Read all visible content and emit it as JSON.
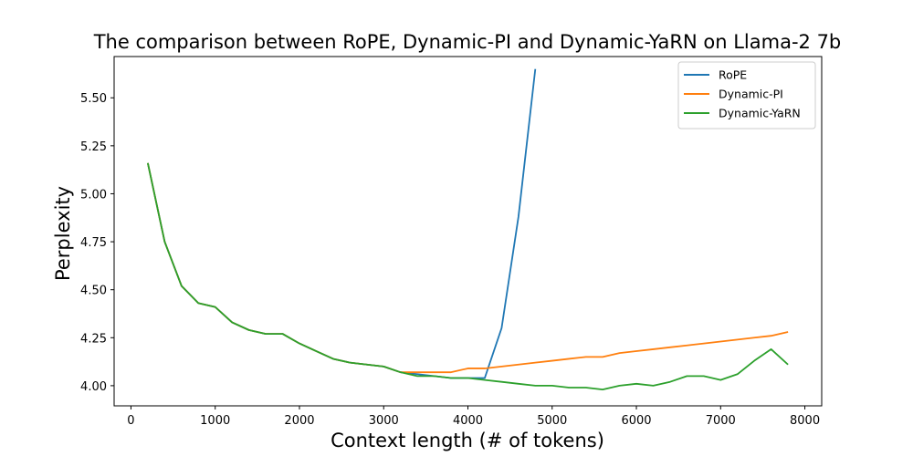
{
  "chart_data": {
    "type": "line",
    "title": "The comparison between RoPE, Dynamic-PI and Dynamic-YaRN on Llama-2 7b",
    "xlabel": "Context length (# of tokens)",
    "ylabel": "Perplexity",
    "xlim": [
      -200,
      8200
    ],
    "ylim": [
      3.895,
      5.715
    ],
    "xticks": [
      0,
      1000,
      2000,
      3000,
      4000,
      5000,
      6000,
      7000,
      8000
    ],
    "xtick_labels": [
      "0",
      "1000",
      "2000",
      "3000",
      "4000",
      "5000",
      "6000",
      "7000",
      "8000"
    ],
    "yticks": [
      4.0,
      4.25,
      4.5,
      4.75,
      5.0,
      5.25,
      5.5
    ],
    "ytick_labels": [
      "4.00",
      "4.25",
      "4.50",
      "4.75",
      "5.00",
      "5.25",
      "5.50"
    ],
    "grid": false,
    "legend_position": "top-right",
    "series": [
      {
        "name": "RoPE",
        "color": "#1f77b4",
        "x": [
          200,
          400,
          600,
          800,
          1000,
          1200,
          1400,
          1600,
          1800,
          2000,
          2200,
          2400,
          2600,
          2800,
          3000,
          3200,
          3400,
          3600,
          3800,
          4000,
          4200,
          4400,
          4600,
          4800
        ],
        "y": [
          5.16,
          4.75,
          4.52,
          4.43,
          4.41,
          4.33,
          4.29,
          4.27,
          4.27,
          4.22,
          4.18,
          4.14,
          4.12,
          4.11,
          4.1,
          4.07,
          4.06,
          4.05,
          4.04,
          4.04,
          4.04,
          4.3,
          4.88,
          5.65
        ]
      },
      {
        "name": "Dynamic-PI",
        "color": "#ff7f0e",
        "x": [
          200,
          400,
          600,
          800,
          1000,
          1200,
          1400,
          1600,
          1800,
          2000,
          2200,
          2400,
          2600,
          2800,
          3000,
          3200,
          3400,
          3600,
          3800,
          4000,
          4200,
          4400,
          4600,
          4800,
          5000,
          5200,
          5400,
          5600,
          5800,
          6000,
          6200,
          6400,
          6600,
          6800,
          7000,
          7200,
          7400,
          7600,
          7800
        ],
        "y": [
          5.16,
          4.75,
          4.52,
          4.43,
          4.41,
          4.33,
          4.29,
          4.27,
          4.27,
          4.22,
          4.18,
          4.14,
          4.12,
          4.11,
          4.1,
          4.07,
          4.07,
          4.07,
          4.07,
          4.09,
          4.09,
          4.1,
          4.11,
          4.12,
          4.13,
          4.14,
          4.15,
          4.15,
          4.17,
          4.18,
          4.19,
          4.2,
          4.21,
          4.22,
          4.23,
          4.24,
          4.25,
          4.26,
          4.28
        ]
      },
      {
        "name": "Dynamic-YaRN",
        "color": "#2ca02c",
        "x": [
          200,
          400,
          600,
          800,
          1000,
          1200,
          1400,
          1600,
          1800,
          2000,
          2200,
          2400,
          2600,
          2800,
          3000,
          3200,
          3400,
          3600,
          3800,
          4000,
          4200,
          4400,
          4600,
          4800,
          5000,
          5200,
          5400,
          5600,
          5800,
          6000,
          6200,
          6400,
          6600,
          6800,
          7000,
          7200,
          7400,
          7600,
          7800
        ],
        "y": [
          5.16,
          4.75,
          4.52,
          4.43,
          4.41,
          4.33,
          4.29,
          4.27,
          4.27,
          4.22,
          4.18,
          4.14,
          4.12,
          4.11,
          4.1,
          4.07,
          4.05,
          4.05,
          4.04,
          4.04,
          4.03,
          4.02,
          4.01,
          4.0,
          4.0,
          3.99,
          3.99,
          3.98,
          4.0,
          4.01,
          4.0,
          4.02,
          4.05,
          4.05,
          4.03,
          4.06,
          4.13,
          4.19,
          4.11
        ]
      }
    ]
  }
}
